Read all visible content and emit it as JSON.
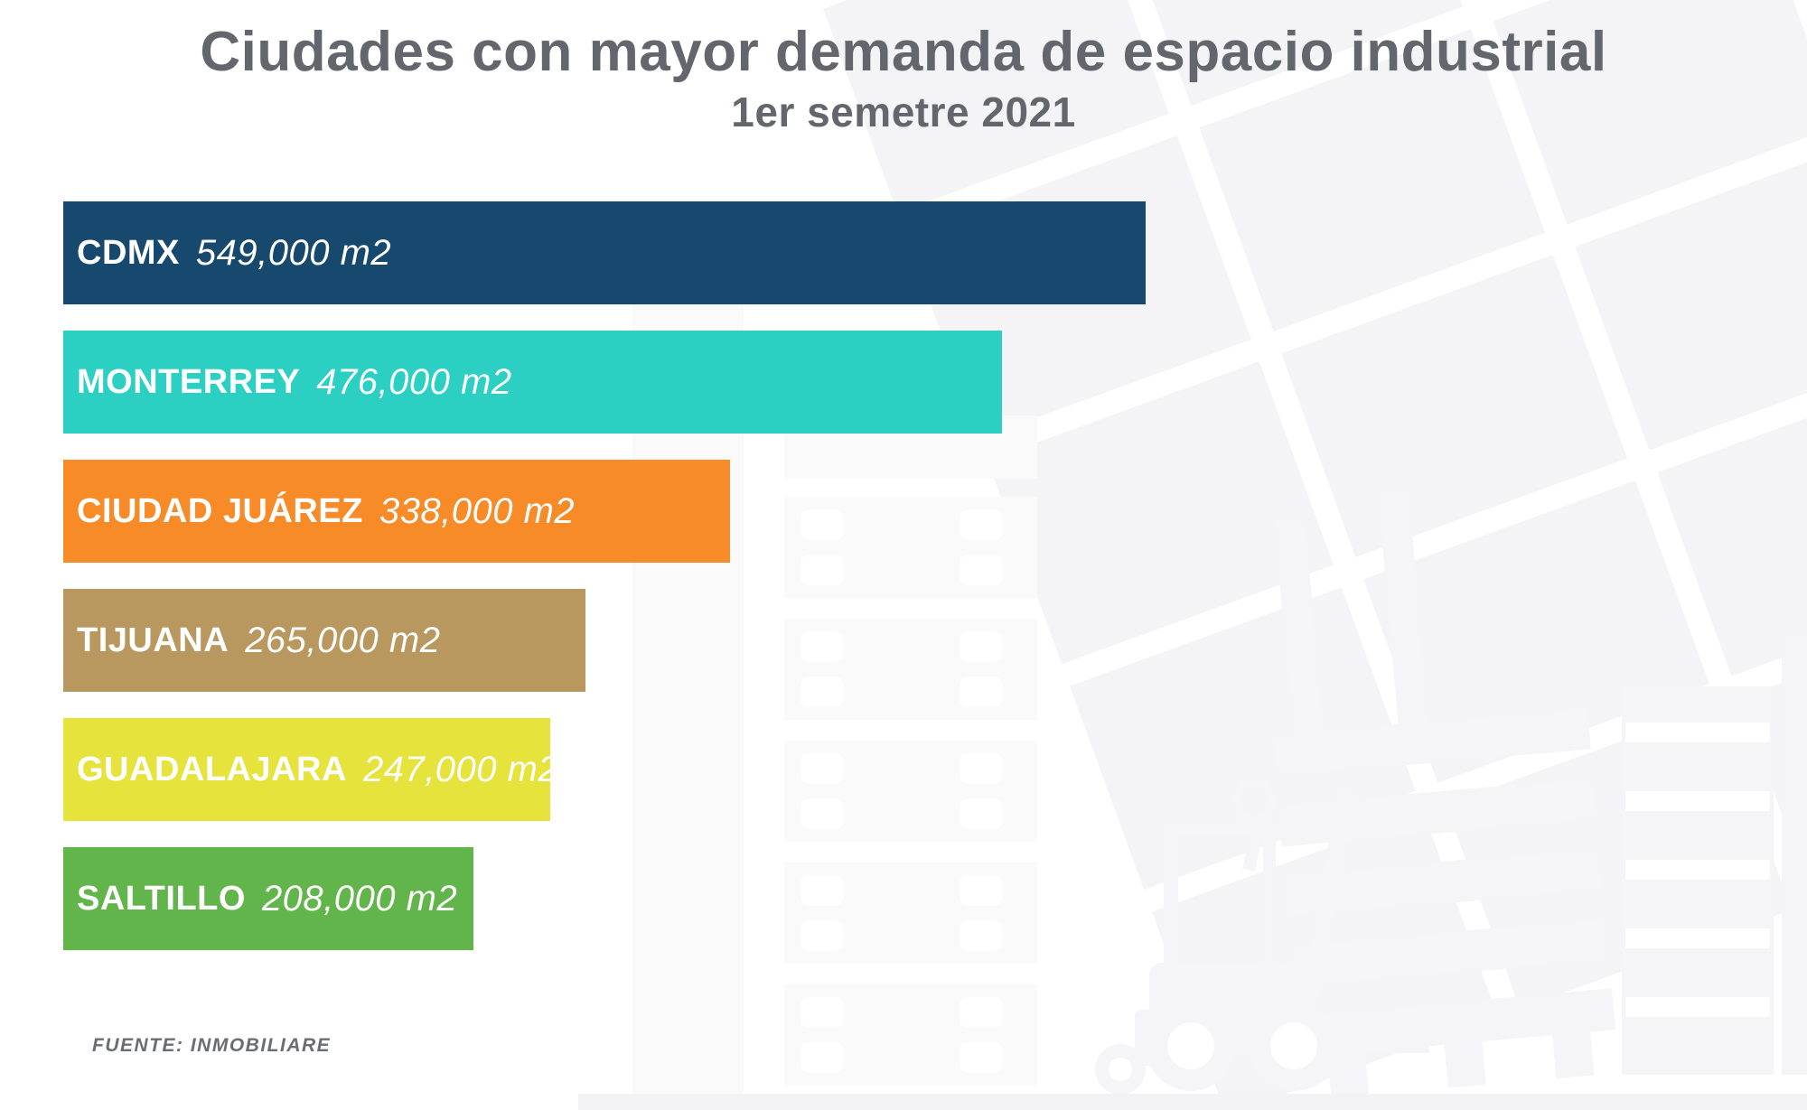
{
  "title": "Ciudades con mayor demanda de espacio industrial",
  "subtitle": "1er semetre 2021",
  "source": "FUENTE: INMOBILIARE",
  "colors": {
    "background": "#ffffff",
    "title_text": "#63666d",
    "source_text": "#6a6d74",
    "bar_label_text": "#ffffff",
    "watermark": "#f5f5f7"
  },
  "chart_data": {
    "type": "bar",
    "orientation": "horizontal",
    "title": "Ciudades con mayor demanda de espacio industrial",
    "subtitle": "1er semetre 2021",
    "source": "FUENTE: INMOBILIARE",
    "unit": "m2",
    "categories": [
      "CDMX",
      "MONTERREY",
      "CIUDAD JUÁREZ",
      "TIJUANA",
      "GUADALAJARA",
      "SALTILLO"
    ],
    "values": [
      549000,
      476000,
      338000,
      265000,
      247000,
      208000
    ],
    "value_labels": [
      "549,000 m2",
      "476,000 m2",
      "338,000 m2",
      "265,000 m2",
      "247,000 m2",
      "208,000 m2"
    ],
    "bar_colors": [
      "#17496f",
      "#2bd0c3",
      "#f68b28",
      "#b9985f",
      "#e6e33c",
      "#62b54a"
    ],
    "xlim": [
      0,
      549000
    ],
    "grid": false,
    "legend": "none",
    "labels_position": "inside-left"
  }
}
